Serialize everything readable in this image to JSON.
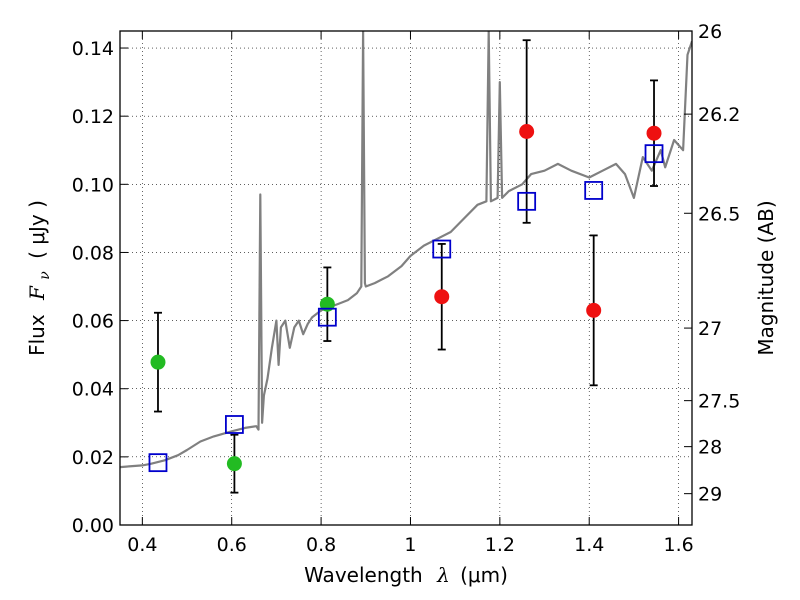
{
  "chart_data": {
    "type": "scatter",
    "xlabel": "Wavelength",
    "xlabel_symbol": "λ",
    "xlabel_unit": "(μm)",
    "ylabel": "Flux",
    "ylabel_symbol": "F",
    "ylabel_subscript": "ν",
    "ylabel_unit": "( μJy )",
    "y2label": "Magnitude (AB)",
    "xlim": [
      0.35,
      1.63
    ],
    "ylim": [
      0.0,
      0.145
    ],
    "grid": true,
    "x_ticks": [
      0.4,
      0.6,
      0.8,
      1.0,
      1.2,
      1.4,
      1.6
    ],
    "x_tick_labels": [
      "0.4",
      "0.6",
      "0.8",
      "1",
      "1.2",
      "1.4",
      "1.6"
    ],
    "y_ticks": [
      0.0,
      0.02,
      0.04,
      0.06,
      0.08,
      0.1,
      0.12,
      0.14
    ],
    "y_tick_labels": [
      "0.00",
      "0.02",
      "0.04",
      "0.06",
      "0.08",
      "0.10",
      "0.12",
      "0.14"
    ],
    "y2_ticks": [
      {
        "label": "26",
        "flux": 0.145
      },
      {
        "label": "26.2",
        "flux": 0.1206
      },
      {
        "label": "26.5",
        "flux": 0.0915
      },
      {
        "label": "27",
        "flux": 0.0578
      },
      {
        "label": "27.5",
        "flux": 0.0365
      },
      {
        "label": "28",
        "flux": 0.023
      },
      {
        "label": "29",
        "flux": 0.0092
      }
    ],
    "colors": {
      "spectrum": "#808080",
      "green_points": "#22bb22",
      "red_points": "#ee1111",
      "model_squares": "#0000cc",
      "error_bars": "#000000"
    },
    "series": [
      {
        "name": "observed-green",
        "marker": "circle",
        "points": [
          {
            "x": 0.435,
            "y": 0.0478,
            "err": 0.0145
          },
          {
            "x": 0.606,
            "y": 0.018,
            "err": 0.0085
          },
          {
            "x": 0.814,
            "y": 0.0648,
            "err": 0.0108
          }
        ]
      },
      {
        "name": "observed-red",
        "marker": "circle",
        "points": [
          {
            "x": 1.07,
            "y": 0.067,
            "err": 0.0155
          },
          {
            "x": 1.26,
            "y": 0.1155,
            "err": 0.0268
          },
          {
            "x": 1.41,
            "y": 0.063,
            "err": 0.022
          },
          {
            "x": 1.545,
            "y": 0.115,
            "err": 0.0155
          }
        ]
      },
      {
        "name": "model-photometry",
        "marker": "square",
        "points": [
          {
            "x": 0.435,
            "y": 0.0183
          },
          {
            "x": 0.606,
            "y": 0.0295
          },
          {
            "x": 0.814,
            "y": 0.061
          },
          {
            "x": 1.07,
            "y": 0.081
          },
          {
            "x": 1.26,
            "y": 0.095
          },
          {
            "x": 1.41,
            "y": 0.0982
          },
          {
            "x": 1.545,
            "y": 0.109
          }
        ]
      }
    ],
    "spectrum": [
      [
        0.35,
        0.017
      ],
      [
        0.37,
        0.0172
      ],
      [
        0.4,
        0.0175
      ],
      [
        0.42,
        0.018
      ],
      [
        0.45,
        0.019
      ],
      [
        0.48,
        0.0205
      ],
      [
        0.5,
        0.022
      ],
      [
        0.53,
        0.0245
      ],
      [
        0.56,
        0.026
      ],
      [
        0.6,
        0.0275
      ],
      [
        0.63,
        0.0285
      ],
      [
        0.655,
        0.029
      ],
      [
        0.66,
        0.028
      ],
      [
        0.664,
        0.097
      ],
      [
        0.668,
        0.03
      ],
      [
        0.672,
        0.038
      ],
      [
        0.68,
        0.043
      ],
      [
        0.69,
        0.052
      ],
      [
        0.7,
        0.06
      ],
      [
        0.705,
        0.047
      ],
      [
        0.71,
        0.058
      ],
      [
        0.72,
        0.06
      ],
      [
        0.73,
        0.052
      ],
      [
        0.74,
        0.058
      ],
      [
        0.75,
        0.06
      ],
      [
        0.76,
        0.056
      ],
      [
        0.77,
        0.059
      ],
      [
        0.78,
        0.061
      ],
      [
        0.8,
        0.063
      ],
      [
        0.82,
        0.064
      ],
      [
        0.84,
        0.065
      ],
      [
        0.86,
        0.066
      ],
      [
        0.88,
        0.068
      ],
      [
        0.89,
        0.07
      ],
      [
        0.894,
        0.145
      ],
      [
        0.898,
        0.071
      ],
      [
        0.9,
        0.07
      ],
      [
        0.92,
        0.071
      ],
      [
        0.95,
        0.073
      ],
      [
        0.98,
        0.076
      ],
      [
        1.0,
        0.079
      ],
      [
        1.03,
        0.082
      ],
      [
        1.06,
        0.084
      ],
      [
        1.09,
        0.086
      ],
      [
        1.12,
        0.09
      ],
      [
        1.15,
        0.094
      ],
      [
        1.17,
        0.095
      ],
      [
        1.175,
        0.145
      ],
      [
        1.18,
        0.095
      ],
      [
        1.195,
        0.096
      ],
      [
        1.2,
        0.13
      ],
      [
        1.205,
        0.096
      ],
      [
        1.22,
        0.098
      ],
      [
        1.25,
        0.1
      ],
      [
        1.27,
        0.103
      ],
      [
        1.3,
        0.104
      ],
      [
        1.33,
        0.106
      ],
      [
        1.36,
        0.104
      ],
      [
        1.4,
        0.102
      ],
      [
        1.43,
        0.104
      ],
      [
        1.46,
        0.106
      ],
      [
        1.48,
        0.103
      ],
      [
        1.5,
        0.096
      ],
      [
        1.52,
        0.108
      ],
      [
        1.54,
        0.104
      ],
      [
        1.56,
        0.11
      ],
      [
        1.57,
        0.105
      ],
      [
        1.59,
        0.113
      ],
      [
        1.61,
        0.11
      ],
      [
        1.62,
        0.138
      ],
      [
        1.63,
        0.142
      ]
    ]
  }
}
